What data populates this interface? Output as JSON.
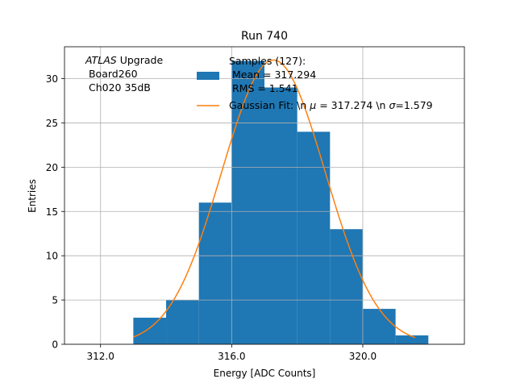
{
  "chart_data": {
    "type": "bar",
    "title": "Run 740",
    "xlabel": "Energy [ADC Counts]",
    "ylabel": "Entries",
    "xlim": [
      310.9,
      323.1
    ],
    "ylim": [
      0,
      33.6
    ],
    "grid": true,
    "xticks": [
      312.0,
      316.0,
      320.0
    ],
    "xtick_labels": [
      "312.0",
      "316.0",
      "320.0"
    ],
    "yticks": [
      0,
      5,
      10,
      15,
      20,
      25,
      30
    ],
    "ytick_labels": [
      "0",
      "5",
      "10",
      "15",
      "20",
      "25",
      "30"
    ],
    "histogram": {
      "bin_edges": [
        313,
        314,
        315,
        316,
        317,
        318,
        319,
        320,
        321,
        322
      ],
      "counts": [
        3,
        5,
        16,
        32,
        29,
        24,
        13,
        4,
        1
      ],
      "color": "#1f77b4"
    },
    "fit": {
      "type": "gaussian",
      "amplitude": 32.1,
      "mu": 317.274,
      "sigma": 1.579,
      "x_range": [
        313,
        321.6
      ],
      "color": "#ff7f0e"
    },
    "annotation": {
      "italic": "ATLAS",
      "rest": " Upgrade",
      "line2": " Board260",
      "line3": " Ch020 35dB"
    },
    "legend": {
      "placement": "top-right",
      "samples_line1": "Samples (127):",
      "samples_line2": " Mean = 317.294",
      "samples_line3": " RMS = 1.541",
      "fit_prefix": "Gaussian Fit: \\n ",
      "fit_mu_symbol": "μ",
      "fit_mu_value": " = 317.274 \\n ",
      "fit_sigma_symbol": "σ",
      "fit_sigma_value": "=1.579"
    }
  }
}
